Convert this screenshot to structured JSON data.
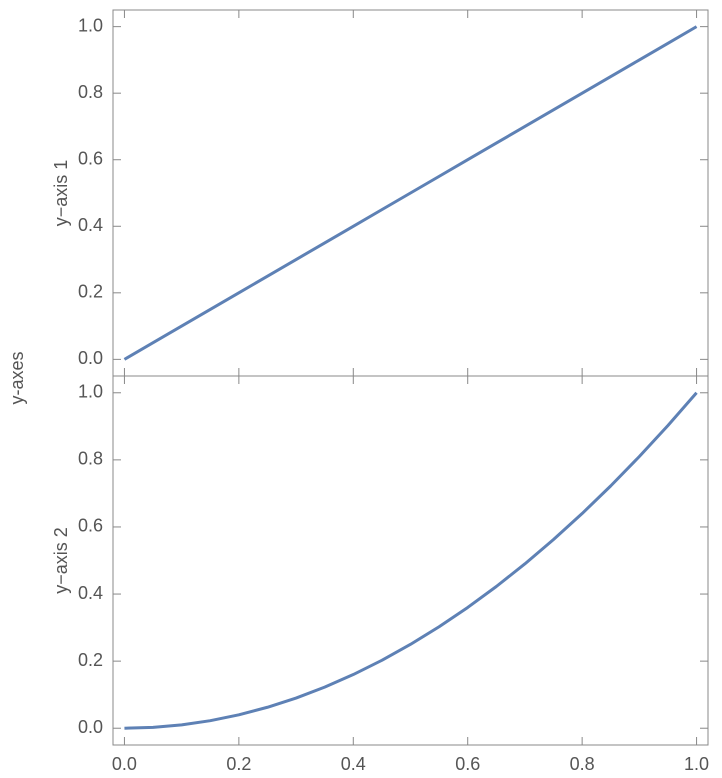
{
  "supylabel": "y-axes",
  "chart_data": [
    {
      "type": "line",
      "ylabel": "y−axis 1",
      "x": [
        0,
        0.05,
        0.1,
        0.15,
        0.2,
        0.25,
        0.3,
        0.35,
        0.4,
        0.45,
        0.5,
        0.55,
        0.6,
        0.65,
        0.7,
        0.75,
        0.8,
        0.85,
        0.9,
        0.95,
        1
      ],
      "values": [
        0,
        0.05,
        0.1,
        0.15,
        0.2,
        0.25,
        0.3,
        0.35,
        0.4,
        0.45,
        0.5,
        0.55,
        0.6,
        0.65,
        0.7,
        0.75,
        0.8,
        0.85,
        0.9,
        0.95,
        1
      ],
      "color": "#5e81b5",
      "xlim": [
        -0.02,
        1.02
      ],
      "ylim": [
        -0.05,
        1.05
      ],
      "yticks": [
        {
          "value": 0,
          "label": "0.0"
        },
        0.2,
        0.4,
        0.6,
        0.8,
        {
          "value": 1,
          "label": "1.0"
        }
      ]
    },
    {
      "type": "line",
      "ylabel": "y−axis 2",
      "x": [
        0,
        0.05,
        0.1,
        0.15,
        0.2,
        0.25,
        0.3,
        0.35,
        0.4,
        0.45,
        0.5,
        0.55,
        0.6,
        0.65,
        0.7,
        0.75,
        0.8,
        0.85,
        0.9,
        0.95,
        1
      ],
      "values": [
        0,
        0.0025,
        0.01,
        0.0225,
        0.04,
        0.0625,
        0.09,
        0.1225,
        0.16,
        0.2025,
        0.25,
        0.3025,
        0.36,
        0.4225,
        0.49,
        0.5625,
        0.64,
        0.7225,
        0.81,
        0.9025,
        1
      ],
      "color": "#5e81b5",
      "xlim": [
        -0.02,
        1.02
      ],
      "ylim": [
        -0.05,
        1.05
      ],
      "xticks": [
        {
          "value": 0,
          "label": "0.0"
        },
        0.2,
        0.4,
        0.6,
        0.8,
        {
          "value": 1,
          "label": "1.0"
        }
      ],
      "yticks": [
        {
          "value": 0,
          "label": "0.0"
        },
        0.2,
        0.4,
        0.6,
        0.8,
        {
          "value": 1,
          "label": "1.0"
        }
      ]
    }
  ]
}
